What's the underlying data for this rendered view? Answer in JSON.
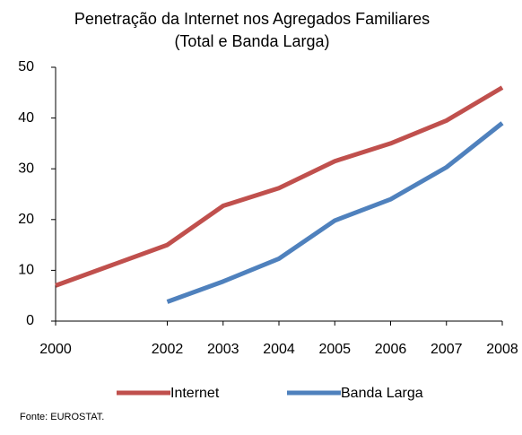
{
  "chart_data": {
    "type": "line",
    "title": "Penetração da Internet nos Agregados Familiares",
    "subtitle": "(Total e Banda Larga)",
    "x": [
      2000,
      2001,
      2002,
      2003,
      2004,
      2005,
      2006,
      2007,
      2008
    ],
    "series": [
      {
        "name": "Internet",
        "color": "#c0504d",
        "values": [
          7,
          11,
          15,
          22.7,
          26.2,
          31.5,
          35,
          39.5,
          46
        ]
      },
      {
        "name": "Banda Larga",
        "color": "#4f81bd",
        "values": [
          null,
          null,
          3.8,
          7.8,
          12.3,
          19.8,
          24,
          30.3,
          39
        ]
      }
    ],
    "xlim": [
      2000,
      2008
    ],
    "xticks": [
      2000,
      2002,
      2003,
      2004,
      2005,
      2006,
      2007,
      2008
    ],
    "ylim": [
      0,
      50
    ],
    "yticks": [
      0,
      10,
      20,
      30,
      40,
      50
    ],
    "grid": false,
    "legend": "bottom",
    "source": "Fonte: EUROSTAT."
  }
}
